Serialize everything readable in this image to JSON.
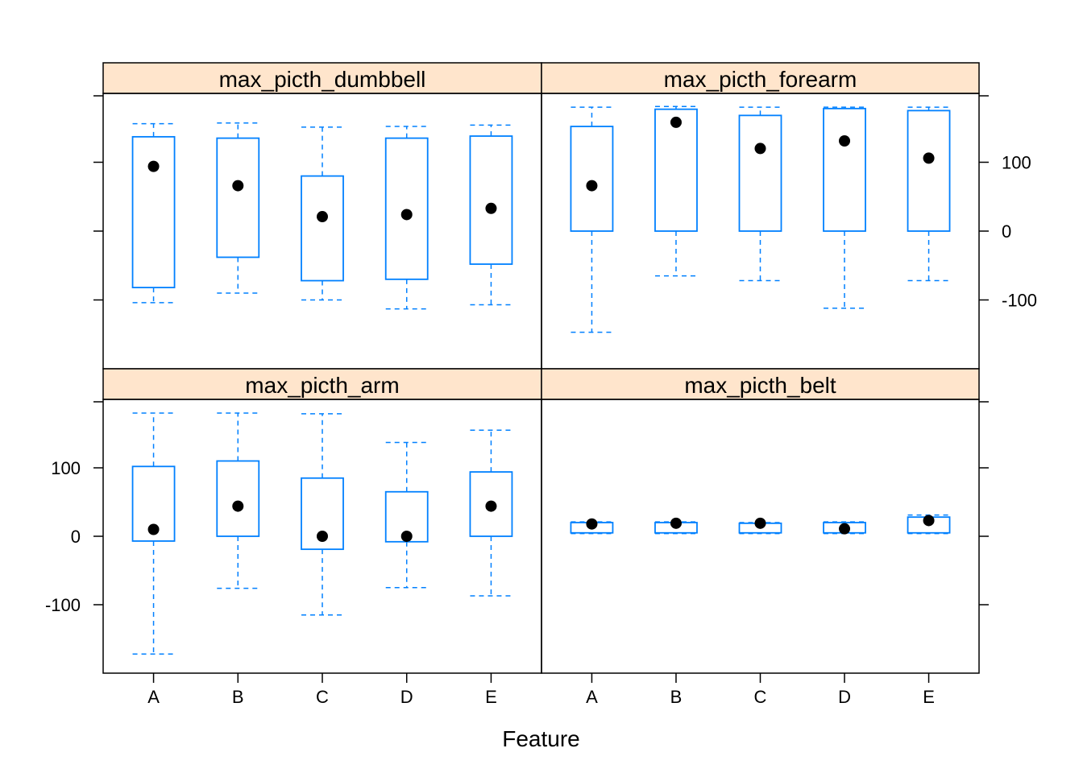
{
  "chart_data": {
    "type": "box",
    "layout": "2x2 trellis",
    "xlabel": "Feature",
    "ylabel": "",
    "categories": [
      "A",
      "B",
      "C",
      "D",
      "E"
    ],
    "ylim": [
      -200,
      200
    ],
    "yticks": [
      -100,
      0,
      100
    ],
    "colors": {
      "box": "#0080ff",
      "median": "#000000",
      "strip": "#ffe5cc",
      "frame": "#000000"
    },
    "panels": [
      {
        "title": "max_picth_dumbbell",
        "boxes": [
          {
            "category": "A",
            "low": -104,
            "q1": -82,
            "median": 94,
            "q3": 137,
            "high": 156
          },
          {
            "category": "B",
            "low": -90,
            "q1": -38,
            "median": 66,
            "q3": 135,
            "high": 157
          },
          {
            "category": "C",
            "low": -100,
            "q1": -72,
            "median": 21,
            "q3": 80,
            "high": 151
          },
          {
            "category": "D",
            "low": -113,
            "q1": -70,
            "median": 24,
            "q3": 135,
            "high": 152
          },
          {
            "category": "E",
            "low": -107,
            "q1": -48,
            "median": 33,
            "q3": 138,
            "high": 154
          }
        ]
      },
      {
        "title": "max_picth_forearm",
        "boxes": [
          {
            "category": "A",
            "low": -147,
            "q1": 0,
            "median": 66,
            "q3": 152,
            "high": 180
          },
          {
            "category": "B",
            "low": -65,
            "q1": 0,
            "median": 158,
            "q3": 177,
            "high": 181
          },
          {
            "category": "C",
            "low": -72,
            "q1": 0,
            "median": 120,
            "q3": 168,
            "high": 180
          },
          {
            "category": "D",
            "low": -112,
            "q1": 0,
            "median": 131,
            "q3": 178,
            "high": 180
          },
          {
            "category": "E",
            "low": -72,
            "q1": 0,
            "median": 106,
            "q3": 175,
            "high": 180
          }
        ]
      },
      {
        "title": "max_picth_arm",
        "boxes": [
          {
            "category": "A",
            "low": -172,
            "q1": -7,
            "median": 10,
            "q3": 102,
            "high": 180
          },
          {
            "category": "B",
            "low": -76,
            "q1": 0,
            "median": 44,
            "q3": 110,
            "high": 180
          },
          {
            "category": "C",
            "low": -115,
            "q1": -19,
            "median": 0,
            "q3": 85,
            "high": 179
          },
          {
            "category": "D",
            "low": -75,
            "q1": -8,
            "median": 0,
            "q3": 65,
            "high": 137
          },
          {
            "category": "E",
            "low": -87,
            "q1": 0,
            "median": 44,
            "q3": 94,
            "high": 155
          }
        ]
      },
      {
        "title": "max_picth_belt",
        "boxes": [
          {
            "category": "A",
            "low": 4,
            "q1": 5,
            "median": 18,
            "q3": 20,
            "high": 21
          },
          {
            "category": "B",
            "low": 4,
            "q1": 5,
            "median": 19,
            "q3": 20,
            "high": 21
          },
          {
            "category": "C",
            "low": 4,
            "q1": 5,
            "median": 19,
            "q3": 19,
            "high": 20
          },
          {
            "category": "D",
            "low": 4,
            "q1": 5,
            "median": 11,
            "q3": 20,
            "high": 21
          },
          {
            "category": "E",
            "low": 4,
            "q1": 5,
            "median": 23,
            "q3": 28,
            "high": 31
          }
        ]
      }
    ]
  }
}
